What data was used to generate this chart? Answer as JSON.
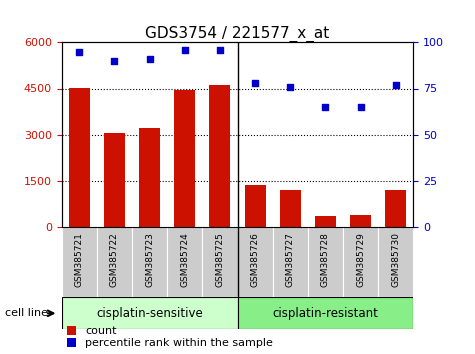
{
  "title": "GDS3754 / 221577_x_at",
  "samples": [
    "GSM385721",
    "GSM385722",
    "GSM385723",
    "GSM385724",
    "GSM385725",
    "GSM385726",
    "GSM385727",
    "GSM385728",
    "GSM385729",
    "GSM385730"
  ],
  "counts": [
    4520,
    3050,
    3220,
    4450,
    4620,
    1350,
    1180,
    350,
    380,
    1200
  ],
  "percentile_ranks": [
    95,
    90,
    91,
    96,
    96,
    78,
    76,
    65,
    65,
    77
  ],
  "bar_color": "#cc1100",
  "dot_color": "#0000cc",
  "ylim_left": [
    0,
    6000
  ],
  "ylim_right": [
    0,
    100
  ],
  "yticks_left": [
    0,
    1500,
    3000,
    4500,
    6000
  ],
  "yticks_right": [
    0,
    25,
    50,
    75,
    100
  ],
  "group1_label": "cisplatin-sensitive",
  "group2_label": "cisplatin-resistant",
  "group1_n": 5,
  "group2_n": 5,
  "group1_color": "#ccffcc",
  "group2_color": "#88ee88",
  "cell_line_label": "cell line",
  "legend_count_label": "count",
  "legend_percentile_label": "percentile rank within the sample",
  "tick_bg_color": "#cccccc",
  "title_fontsize": 11,
  "tick_fontsize": 8,
  "legend_fontsize": 8
}
